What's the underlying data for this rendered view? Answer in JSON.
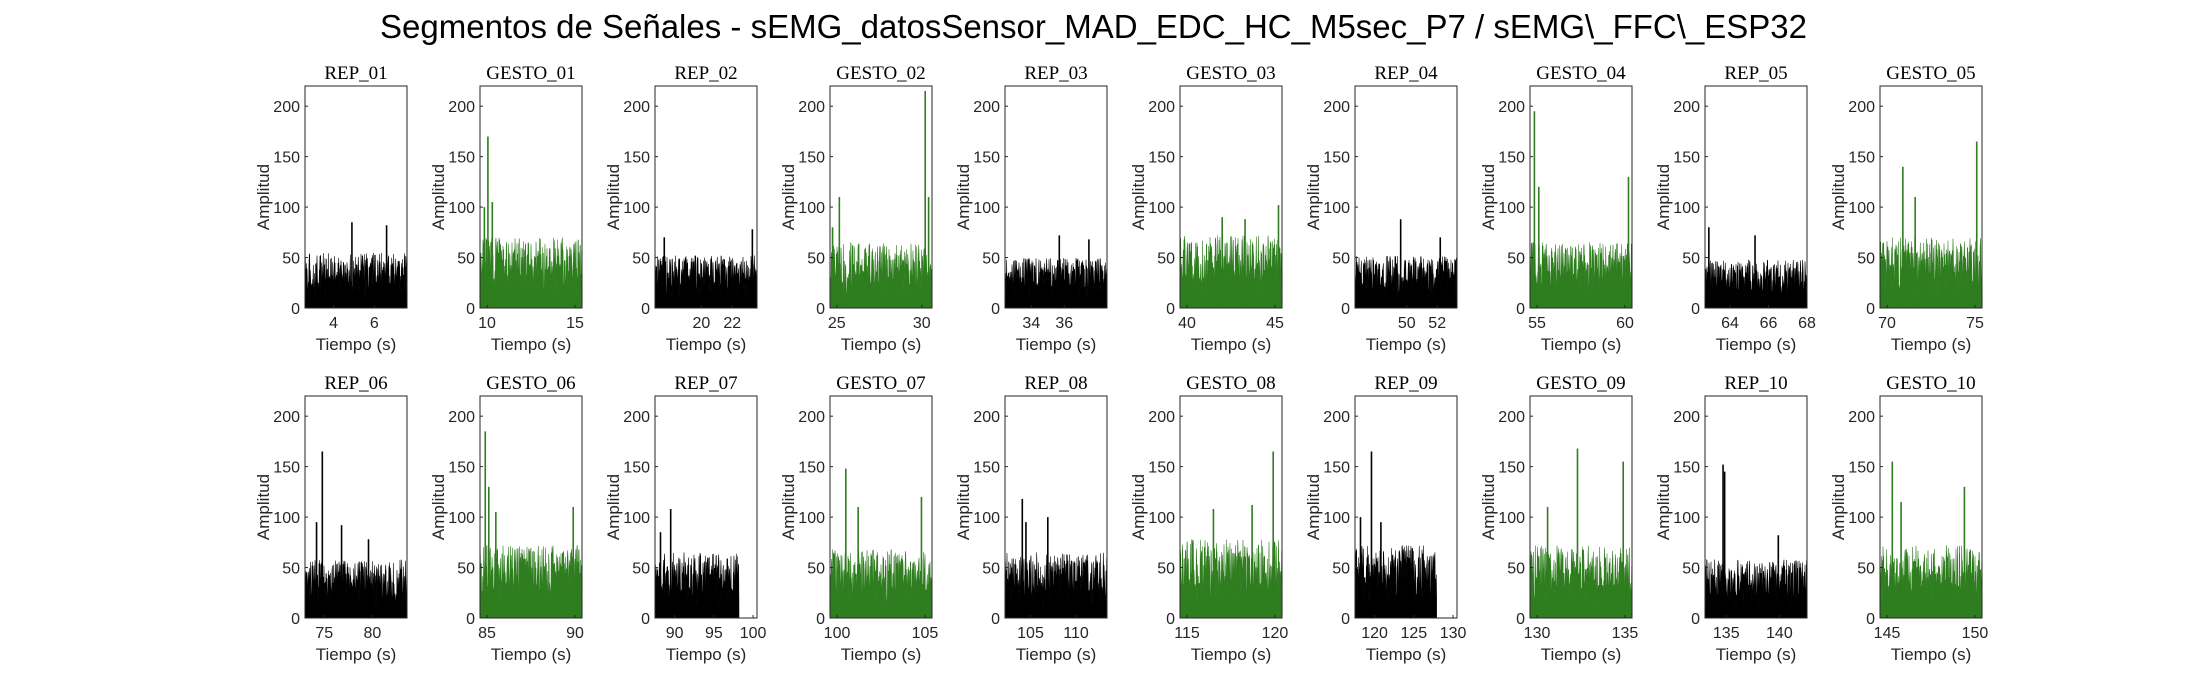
{
  "title": "Segmentos de Señales - sEMG_datosSensor_MAD_EDC_HC_M5sec_P7 / sEMG\\_FFC\\_ESP32",
  "colors": {
    "rep": "#000000",
    "gesto": "#2E7D1E",
    "axis": "#262626",
    "background": "#ffffff"
  },
  "chart_data": [
    {
      "type": "area",
      "title": "REP_01",
      "segment": "rep",
      "xlabel": "Tiempo (s)",
      "ylabel": "Amplitud",
      "xlim": [
        2.6,
        7.6
      ],
      "ylim": [
        0,
        220
      ],
      "xticks": [
        4,
        6
      ],
      "yticks": [
        0,
        50,
        100,
        150,
        200
      ],
      "x_range": [
        2.6,
        7.6
      ],
      "typical_max": 55,
      "peaks": [
        [
          4.9,
          85
        ],
        [
          6.6,
          82
        ]
      ]
    },
    {
      "type": "area",
      "title": "GESTO_01",
      "segment": "gesto",
      "xlabel": "Tiempo (s)",
      "ylabel": "Amplitud",
      "xlim": [
        9.6,
        15.4
      ],
      "ylim": [
        0,
        220
      ],
      "xticks": [
        10,
        15
      ],
      "yticks": [
        0,
        50,
        100,
        150,
        200
      ],
      "x_range": [
        9.6,
        15.4
      ],
      "typical_max": 70,
      "peaks": [
        [
          9.85,
          100
        ],
        [
          10.05,
          170
        ],
        [
          10.3,
          105
        ]
      ]
    },
    {
      "type": "area",
      "title": "REP_02",
      "segment": "rep",
      "xlabel": "Tiempo (s)",
      "ylabel": "Amplitud",
      "xlim": [
        17.0,
        23.6
      ],
      "ylim": [
        0,
        220
      ],
      "xticks": [
        20,
        22
      ],
      "yticks": [
        0,
        50,
        100,
        150,
        200
      ],
      "x_range": [
        17.0,
        23.6
      ],
      "typical_max": 52,
      "peaks": [
        [
          23.3,
          78
        ],
        [
          17.6,
          70
        ]
      ]
    },
    {
      "type": "area",
      "title": "GESTO_02",
      "segment": "gesto",
      "xlabel": "Tiempo (s)",
      "ylabel": "Amplitud",
      "xlim": [
        24.6,
        30.6
      ],
      "ylim": [
        0,
        220
      ],
      "xticks": [
        25,
        30
      ],
      "yticks": [
        0,
        50,
        100,
        150,
        200
      ],
      "x_range": [
        24.6,
        30.6
      ],
      "typical_max": 65,
      "peaks": [
        [
          24.75,
          80
        ],
        [
          25.15,
          110
        ],
        [
          30.2,
          215
        ],
        [
          30.4,
          110
        ]
      ]
    },
    {
      "type": "area",
      "title": "REP_03",
      "segment": "rep",
      "xlabel": "Tiempo (s)",
      "ylabel": "Amplitud",
      "xlim": [
        32.4,
        38.6
      ],
      "ylim": [
        0,
        220
      ],
      "xticks": [
        34,
        36
      ],
      "yticks": [
        0,
        50,
        100,
        150,
        200
      ],
      "x_range": [
        32.4,
        38.6
      ],
      "typical_max": 50,
      "peaks": [
        [
          35.7,
          72
        ],
        [
          37.5,
          68
        ]
      ]
    },
    {
      "type": "area",
      "title": "GESTO_03",
      "segment": "gesto",
      "xlabel": "Tiempo (s)",
      "ylabel": "Amplitud",
      "xlim": [
        39.6,
        45.4
      ],
      "ylim": [
        0,
        220
      ],
      "xticks": [
        40,
        45
      ],
      "yticks": [
        0,
        50,
        100,
        150,
        200
      ],
      "x_range": [
        39.6,
        45.4
      ],
      "typical_max": 72,
      "peaks": [
        [
          42.0,
          90
        ],
        [
          43.3,
          88
        ],
        [
          45.2,
          102
        ]
      ]
    },
    {
      "type": "area",
      "title": "REP_04",
      "segment": "rep",
      "xlabel": "Tiempo (s)",
      "ylabel": "Amplitud",
      "xlim": [
        46.6,
        53.3
      ],
      "ylim": [
        0,
        220
      ],
      "xticks": [
        50,
        52
      ],
      "yticks": [
        0,
        50,
        100,
        150,
        200
      ],
      "x_range": [
        46.6,
        53.3
      ],
      "typical_max": 52,
      "peaks": [
        [
          49.6,
          88
        ],
        [
          52.2,
          70
        ]
      ]
    },
    {
      "type": "area",
      "title": "GESTO_04",
      "segment": "gesto",
      "xlabel": "Tiempo (s)",
      "ylabel": "Amplitud",
      "xlim": [
        54.6,
        60.4
      ],
      "ylim": [
        0,
        220
      ],
      "xticks": [
        55,
        60
      ],
      "yticks": [
        0,
        50,
        100,
        150,
        200
      ],
      "x_range": [
        54.6,
        60.4
      ],
      "typical_max": 65,
      "peaks": [
        [
          54.85,
          195
        ],
        [
          55.1,
          120
        ],
        [
          60.2,
          130
        ]
      ]
    },
    {
      "type": "area",
      "title": "REP_05",
      "segment": "rep",
      "xlabel": "Tiempo (s)",
      "ylabel": "Amplitud",
      "xlim": [
        62.7,
        68.0
      ],
      "ylim": [
        0,
        220
      ],
      "xticks": [
        64,
        66,
        68
      ],
      "yticks": [
        0,
        50,
        100,
        150,
        200
      ],
      "x_range": [
        62.7,
        68.0
      ],
      "typical_max": 48,
      "peaks": [
        [
          62.9,
          80
        ],
        [
          65.3,
          72
        ]
      ]
    },
    {
      "type": "area",
      "title": "GESTO_05",
      "segment": "gesto",
      "xlabel": "Tiempo (s)",
      "ylabel": "Amplitud",
      "xlim": [
        69.6,
        75.4
      ],
      "ylim": [
        0,
        220
      ],
      "xticks": [
        70,
        75
      ],
      "yticks": [
        0,
        50,
        100,
        150,
        200
      ],
      "x_range": [
        69.6,
        75.4
      ],
      "typical_max": 70,
      "peaks": [
        [
          70.9,
          140
        ],
        [
          71.6,
          110
        ],
        [
          75.1,
          165
        ]
      ]
    },
    {
      "type": "area",
      "title": "REP_06",
      "segment": "rep",
      "xlabel": "Tiempo (s)",
      "ylabel": "Amplitud",
      "xlim": [
        73.0,
        83.6
      ],
      "ylim": [
        0,
        220
      ],
      "xticks": [
        75,
        80
      ],
      "yticks": [
        0,
        50,
        100,
        150,
        200
      ],
      "x_range": [
        73.0,
        83.6
      ],
      "typical_max": 58,
      "peaks": [
        [
          74.2,
          95
        ],
        [
          74.8,
          165
        ],
        [
          76.8,
          92
        ],
        [
          79.6,
          78
        ]
      ]
    },
    {
      "type": "area",
      "title": "GESTO_06",
      "segment": "gesto",
      "xlabel": "Tiempo (s)",
      "ylabel": "Amplitud",
      "xlim": [
        84.6,
        90.4
      ],
      "ylim": [
        0,
        220
      ],
      "xticks": [
        85,
        90
      ],
      "yticks": [
        0,
        50,
        100,
        150,
        200
      ],
      "x_range": [
        84.6,
        90.4
      ],
      "typical_max": 72,
      "peaks": [
        [
          84.9,
          185
        ],
        [
          85.1,
          130
        ],
        [
          85.5,
          105
        ],
        [
          89.9,
          110
        ]
      ]
    },
    {
      "type": "area",
      "title": "REP_07",
      "segment": "rep",
      "xlabel": "Tiempo (s)",
      "ylabel": "Amplitud",
      "xlim": [
        87.5,
        100.5
      ],
      "ylim": [
        0,
        220
      ],
      "xticks": [
        90,
        95,
        100
      ],
      "yticks": [
        0,
        50,
        100,
        150,
        200
      ],
      "x_range": [
        87.5,
        98.2
      ],
      "typical_max": 65,
      "peaks": [
        [
          89.5,
          108
        ],
        [
          88.2,
          85
        ]
      ]
    },
    {
      "type": "area",
      "title": "GESTO_07",
      "segment": "gesto",
      "xlabel": "Tiempo (s)",
      "ylabel": "Amplitud",
      "xlim": [
        99.6,
        105.4
      ],
      "ylim": [
        0,
        220
      ],
      "xticks": [
        100,
        105
      ],
      "yticks": [
        0,
        50,
        100,
        150,
        200
      ],
      "x_range": [
        99.6,
        105.4
      ],
      "typical_max": 68,
      "peaks": [
        [
          100.5,
          148
        ],
        [
          101.2,
          110
        ],
        [
          104.8,
          120
        ]
      ]
    },
    {
      "type": "area",
      "title": "REP_08",
      "segment": "rep",
      "xlabel": "Tiempo (s)",
      "ylabel": "Amplitud",
      "xlim": [
        102.2,
        113.4
      ],
      "ylim": [
        0,
        220
      ],
      "xticks": [
        105,
        110
      ],
      "yticks": [
        0,
        50,
        100,
        150,
        200
      ],
      "x_range": [
        102.2,
        113.4
      ],
      "typical_max": 65,
      "peaks": [
        [
          104.1,
          118
        ],
        [
          104.5,
          95
        ],
        [
          106.9,
          100
        ]
      ]
    },
    {
      "type": "area",
      "title": "GESTO_08",
      "segment": "gesto",
      "xlabel": "Tiempo (s)",
      "ylabel": "Amplitud",
      "xlim": [
        114.6,
        120.4
      ],
      "ylim": [
        0,
        220
      ],
      "xticks": [
        115,
        120
      ],
      "yticks": [
        0,
        50,
        100,
        150,
        200
      ],
      "x_range": [
        114.6,
        120.4
      ],
      "typical_max": 78,
      "peaks": [
        [
          116.5,
          108
        ],
        [
          118.7,
          112
        ],
        [
          119.9,
          165
        ]
      ]
    },
    {
      "type": "area",
      "title": "REP_09",
      "segment": "rep",
      "xlabel": "Tiempo (s)",
      "ylabel": "Amplitud",
      "xlim": [
        117.5,
        130.5
      ],
      "ylim": [
        0,
        220
      ],
      "xticks": [
        120,
        125,
        130
      ],
      "yticks": [
        0,
        50,
        100,
        150,
        200
      ],
      "x_range": [
        117.5,
        127.9
      ],
      "typical_max": 72,
      "peaks": [
        [
          118.2,
          100
        ],
        [
          119.6,
          165
        ],
        [
          120.8,
          95
        ]
      ]
    },
    {
      "type": "area",
      "title": "GESTO_09",
      "segment": "gesto",
      "xlabel": "Tiempo (s)",
      "ylabel": "Amplitud",
      "xlim": [
        129.6,
        135.4
      ],
      "ylim": [
        0,
        220
      ],
      "xticks": [
        130,
        135
      ],
      "yticks": [
        0,
        50,
        100,
        150,
        200
      ],
      "x_range": [
        129.6,
        135.4
      ],
      "typical_max": 72,
      "peaks": [
        [
          130.6,
          110
        ],
        [
          132.3,
          168
        ],
        [
          134.9,
          155
        ]
      ]
    },
    {
      "type": "area",
      "title": "REP_10",
      "segment": "rep",
      "xlabel": "Tiempo (s)",
      "ylabel": "Amplitud",
      "xlim": [
        133.0,
        142.6
      ],
      "ylim": [
        0,
        220
      ],
      "xticks": [
        135,
        140
      ],
      "yticks": [
        0,
        50,
        100,
        150,
        200
      ],
      "x_range": [
        133.0,
        142.6
      ],
      "typical_max": 58,
      "peaks": [
        [
          134.7,
          152
        ],
        [
          134.85,
          145
        ],
        [
          139.9,
          82
        ]
      ]
    },
    {
      "type": "area",
      "title": "GESTO_10",
      "segment": "gesto",
      "xlabel": "Tiempo (s)",
      "ylabel": "Amplitud",
      "xlim": [
        144.6,
        150.4
      ],
      "ylim": [
        0,
        220
      ],
      "xticks": [
        145,
        150
      ],
      "yticks": [
        0,
        50,
        100,
        150,
        200
      ],
      "x_range": [
        144.6,
        150.4
      ],
      "typical_max": 72,
      "peaks": [
        [
          145.3,
          155
        ],
        [
          145.8,
          115
        ],
        [
          149.4,
          130
        ]
      ]
    }
  ]
}
